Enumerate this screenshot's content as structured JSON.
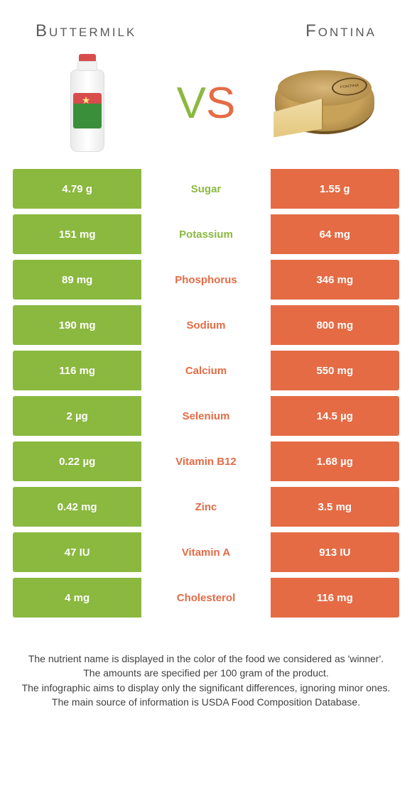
{
  "header": {
    "left": "Buttermilk",
    "right": "Fontina"
  },
  "vs": {
    "v": "V",
    "s": "S"
  },
  "colors": {
    "left": "#8bb83f",
    "right": "#e56b45",
    "left_text_on_white": "#8bb83f",
    "right_text_on_white": "#e56b45"
  },
  "rows": [
    {
      "label": "Sugar",
      "left": "4.79 g",
      "right": "1.55 g",
      "winner": "left"
    },
    {
      "label": "Potassium",
      "left": "151 mg",
      "right": "64 mg",
      "winner": "left"
    },
    {
      "label": "Phosphorus",
      "left": "89 mg",
      "right": "346 mg",
      "winner": "right"
    },
    {
      "label": "Sodium",
      "left": "190 mg",
      "right": "800 mg",
      "winner": "right"
    },
    {
      "label": "Calcium",
      "left": "116 mg",
      "right": "550 mg",
      "winner": "right"
    },
    {
      "label": "Selenium",
      "left": "2 µg",
      "right": "14.5 µg",
      "winner": "right"
    },
    {
      "label": "Vitamin B12",
      "left": "0.22 µg",
      "right": "1.68 µg",
      "winner": "right"
    },
    {
      "label": "Zinc",
      "left": "0.42 mg",
      "right": "3.5 mg",
      "winner": "right"
    },
    {
      "label": "Vitamin A",
      "left": "47 IU",
      "right": "913 IU",
      "winner": "right"
    },
    {
      "label": "Cholesterol",
      "left": "4 mg",
      "right": "116 mg",
      "winner": "right"
    }
  ],
  "footer": {
    "l1": "The nutrient name is displayed in the color of the food we considered as 'winner'.",
    "l2": "The amounts are specified per 100 gram of the product.",
    "l3": "The infographic aims to display only the significant differences, ignoring minor ones.",
    "l4": "The main source of information is USDA Food Composition Database."
  }
}
